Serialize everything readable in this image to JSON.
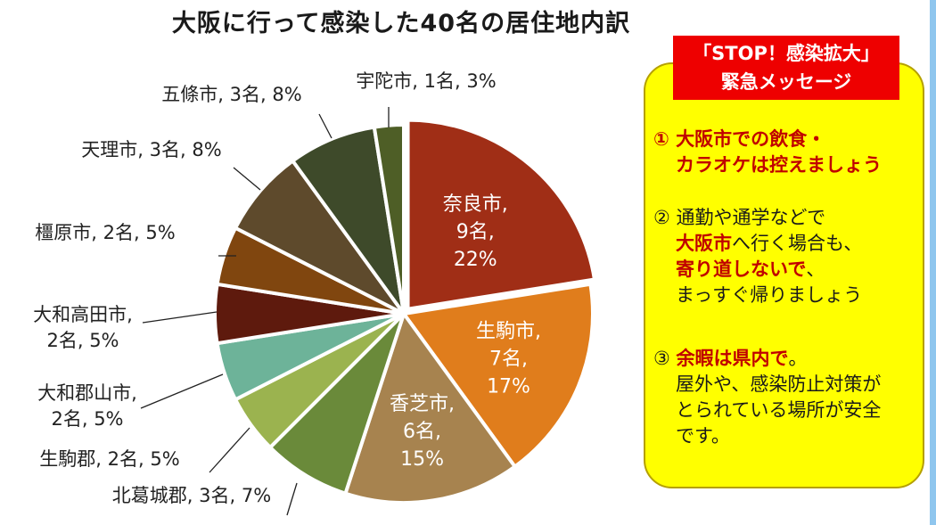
{
  "chart_data": {
    "type": "pie",
    "title": "大阪に行って感染した40名の居住地内訳",
    "slices": [
      {
        "label": "奈良市",
        "count": "9名",
        "percent": "22%",
        "value": 9,
        "color": "#a02e16"
      },
      {
        "label": "生駒市",
        "count": "7名",
        "percent": "17%",
        "value": 7,
        "color": "#e07d1c"
      },
      {
        "label": "香芝市",
        "count": "6名",
        "percent": "15%",
        "value": 6,
        "color": "#a7834f"
      },
      {
        "label": "北葛城郡",
        "count": "3名",
        "percent": "7%",
        "value": 3,
        "color": "#6a8a3a"
      },
      {
        "label": "生駒郡",
        "count": "2名",
        "percent": "5%",
        "value": 2,
        "color": "#9bb34f"
      },
      {
        "label": "大和郡山市",
        "count": "2名",
        "percent": "5%",
        "value": 2,
        "color": "#6db399"
      },
      {
        "label": "大和高田市",
        "count": "2名",
        "percent": "5%",
        "value": 2,
        "color": "#5e1a0d"
      },
      {
        "label": "橿原市",
        "count": "2名",
        "percent": "5%",
        "value": 2,
        "color": "#80460f"
      },
      {
        "label": "天理市",
        "count": "3名",
        "percent": "8%",
        "value": 3,
        "color": "#5e4a2c"
      },
      {
        "label": "五條市",
        "count": "3名",
        "percent": "8%",
        "value": 3,
        "color": "#3e4a2a"
      },
      {
        "label": "宇陀市",
        "count": "1名",
        "percent": "3%",
        "value": 1,
        "color": "#4e5e26"
      }
    ],
    "outside_labels": [
      {
        "slice": 3,
        "lines": [
          "北葛城郡, 3名, 7%"
        ]
      },
      {
        "slice": 4,
        "lines": [
          "生駒郡, 2名, 5%"
        ]
      },
      {
        "slice": 5,
        "lines": [
          "大和郡山市,",
          "2名, 5%"
        ]
      },
      {
        "slice": 6,
        "lines": [
          "大和高田市,",
          "2名, 5%"
        ]
      },
      {
        "slice": 7,
        "lines": [
          "橿原市, 2名, 5%"
        ]
      },
      {
        "slice": 8,
        "lines": [
          "天理市, 3名, 8%"
        ]
      },
      {
        "slice": 9,
        "lines": [
          "五條市, 3名, 8%"
        ]
      },
      {
        "slice": 10,
        "lines": [
          "宇陀市, 1名, 3%"
        ]
      }
    ],
    "legend": "none"
  },
  "message": {
    "header_line1": "「STOP！感染拡大」",
    "header_line2": "緊急メッセージ",
    "item1_line1": "① 大阪市での飲食・",
    "item1_line2": "カラオケは控えましょう",
    "item2_line1": "② 通勤や通学などで",
    "item2_red1": "大阪市",
    "item2_line2_rest": "へ行く場合も、",
    "item2_red2": "寄り道しないで",
    "item2_line3_rest": "、",
    "item2_line4": "まっすぐ帰りましょう",
    "item3_num": "③ ",
    "item3_red": "余暇は県内で",
    "item3_line1_rest": "。",
    "item3_line2": "屋外や、感染防止対策が",
    "item3_line3": "とられている場所が安全",
    "item3_line4": "です。"
  }
}
